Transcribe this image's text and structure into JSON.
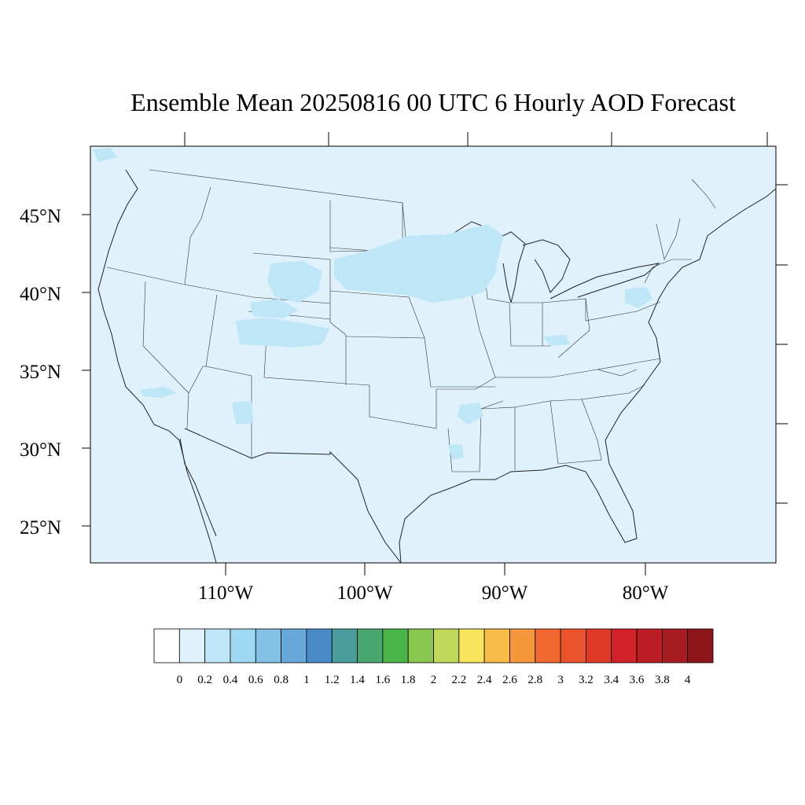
{
  "title": "Ensemble Mean 20250816 00 UTC 6 Hourly AOD Forecast",
  "lat_labels": [
    "45°N",
    "40°N",
    "35°N",
    "30°N",
    "25°N"
  ],
  "lon_labels": [
    "110°W",
    "100°W",
    "90°W",
    "80°W"
  ],
  "background_color": "#dff1fb",
  "plume_color": "#bfe6f7",
  "colorbar": {
    "labels": [
      "0",
      "0.2",
      "0.4",
      "0.6",
      "0.8",
      "1",
      "1.2",
      "1.4",
      "1.6",
      "1.8",
      "2",
      "2.2",
      "2.4",
      "2.6",
      "2.8",
      "3",
      "3.2",
      "3.4",
      "3.6",
      "3.8",
      "4"
    ],
    "colors": [
      "#ffffff",
      "#dff1fb",
      "#bfe6f7",
      "#9fd8f3",
      "#83c0e6",
      "#68a8db",
      "#4a8ac7",
      "#4b9c9c",
      "#47a76f",
      "#4ab54a",
      "#89c64f",
      "#c1d95a",
      "#f7e65c",
      "#f7bd48",
      "#f6963d",
      "#f2682e",
      "#ea532b",
      "#df3a28",
      "#d22129",
      "#bb1e25",
      "#a71c22",
      "#8e161b"
    ]
  }
}
